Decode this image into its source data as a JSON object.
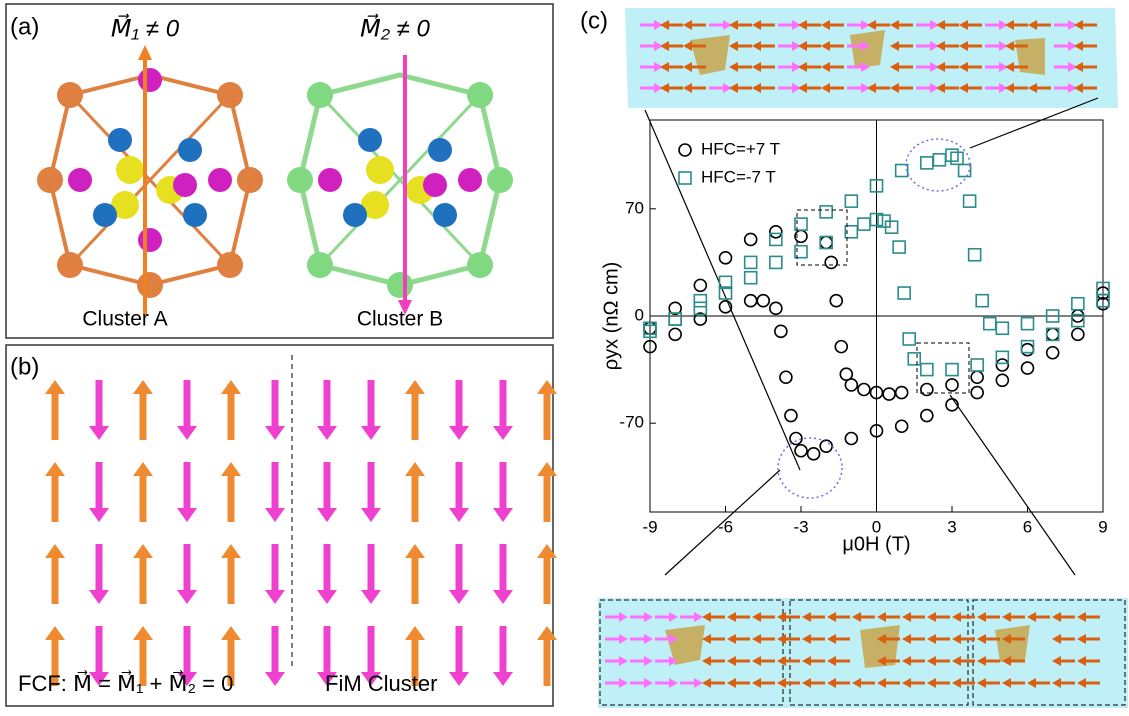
{
  "panel_a": {
    "label": "(a)",
    "m1": "M⃗₁ ≠ 0",
    "m2": "M⃗₂ ≠ 0",
    "cluster_a": "Cluster A",
    "cluster_b": "Cluster B"
  },
  "panel_b": {
    "label": "(b)",
    "fcf": "FCF: M⃗ = M⃗₁ + M⃗₂ = 0",
    "fim": "FiM Cluster"
  },
  "panel_c": {
    "label": "(c)"
  },
  "chart_data": {
    "type": "scatter",
    "xlabel": "μ0H (T)",
    "ylabel": "ρyx (nΩ cm)",
    "xlim": [
      -9,
      9
    ],
    "ylim": [
      -128,
      128
    ],
    "xticks": [
      -9,
      -6,
      -3,
      0,
      3,
      6,
      9
    ],
    "yticks": [
      -70,
      0,
      70
    ],
    "legend": "upper left",
    "series": [
      {
        "name": "HFC=+7 T",
        "color": "#000000",
        "marker": "circle",
        "x": [
          -9,
          -8,
          -7,
          -6,
          -5,
          -4.5,
          -4,
          -3.8,
          -3.6,
          -3.4,
          -3.2,
          -3,
          -2.5,
          -2,
          -1,
          0,
          1,
          2,
          3,
          4,
          5,
          6,
          7,
          8,
          9,
          9,
          8,
          7,
          6,
          5,
          4,
          3,
          2,
          1,
          0.5,
          0,
          -0.5,
          -1,
          -1.2,
          -1.4,
          -1.6,
          -1.8,
          -2,
          -3,
          -4,
          -5,
          -6,
          -7,
          -8,
          -9
        ],
        "values": [
          -20,
          -12,
          -2,
          6,
          10,
          10,
          5,
          -10,
          -40,
          -65,
          -80,
          -88,
          -90,
          -85,
          -80,
          -75,
          -72,
          -65,
          -58,
          -50,
          -42,
          -34,
          -24,
          -12,
          8,
          15,
          0,
          -12,
          -22,
          -32,
          -40,
          -45,
          -48,
          -50,
          -51,
          -50,
          -48,
          -45,
          -38,
          -20,
          10,
          35,
          48,
          52,
          55,
          50,
          38,
          20,
          5,
          -8
        ]
      },
      {
        "name": "HFC=-7 T",
        "color": "#2a8c8c",
        "marker": "square",
        "x": [
          -9,
          -8,
          -7,
          -6,
          -5,
          -4,
          -3,
          -2,
          -1,
          -0.5,
          0,
          0.3,
          0.6,
          0.9,
          1.1,
          1.3,
          1.5,
          2,
          3,
          4,
          5,
          6,
          7,
          8,
          9,
          9,
          8,
          7,
          6,
          5,
          4.5,
          4.2,
          3.9,
          3.7,
          3.5,
          3.2,
          3,
          2.5,
          2,
          1,
          0,
          -1,
          -2,
          -3,
          -4,
          -5,
          -6,
          -7,
          -8,
          -9
        ],
        "values": [
          -10,
          -2,
          5,
          15,
          25,
          35,
          42,
          48,
          55,
          60,
          63,
          62,
          58,
          45,
          15,
          -15,
          -28,
          -35,
          -35,
          -32,
          -27,
          -20,
          -12,
          -3,
          10,
          18,
          8,
          0,
          -5,
          -8,
          -5,
          10,
          40,
          75,
          95,
          103,
          105,
          102,
          100,
          95,
          85,
          75,
          68,
          60,
          50,
          35,
          22,
          10,
          -2,
          -8
        ]
      }
    ]
  }
}
